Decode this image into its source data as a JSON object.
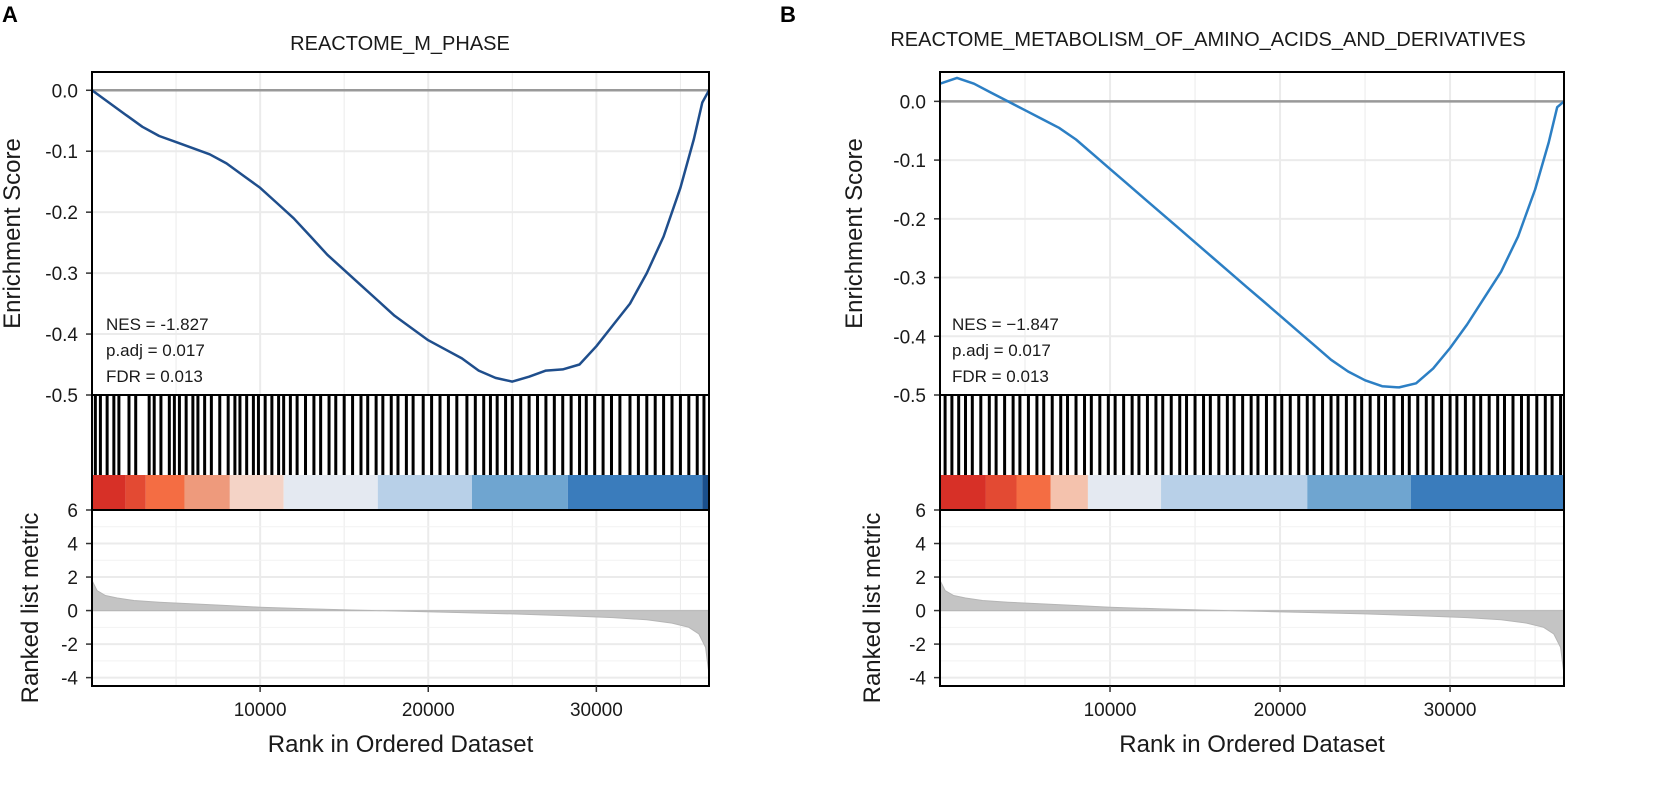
{
  "chart_data": [
    {
      "type": "line",
      "panel_label": "A",
      "title": "REACTOME_M_PHASE",
      "xlabel": "Rank in Ordered Dataset",
      "ylabel_es": "Enrichment Score",
      "ylabel_metric": "Ranked list metric",
      "xlim": [
        0,
        36700
      ],
      "x_ticks": [
        10000,
        20000,
        30000
      ],
      "x_tick_labels": [
        "10000",
        "20000",
        "30000"
      ],
      "es_ylim": [
        -0.5,
        0.03
      ],
      "es_ticks": [
        0.0,
        -0.1,
        -0.2,
        -0.3,
        -0.4,
        -0.5
      ],
      "es_tick_labels": [
        "0.0",
        "-0.1",
        "-0.2",
        "-0.3",
        "-0.4",
        "-0.5"
      ],
      "metric_ylim": [
        -4.5,
        6
      ],
      "metric_ticks": [
        6,
        4,
        2,
        0,
        -2,
        -4
      ],
      "metric_tick_labels": [
        "6",
        "4",
        "2",
        "0",
        "-2",
        "-4"
      ],
      "line_color": "#1f4e8c",
      "stats": {
        "nes": "NES = -1.827",
        "padj": "p.adj = 0.017",
        "fdr": "FDR = 0.013"
      },
      "es_curve": {
        "x": [
          0,
          1000,
          2000,
          3000,
          4000,
          5000,
          6000,
          7000,
          8000,
          9000,
          10000,
          11000,
          12000,
          13000,
          14000,
          15000,
          16000,
          17000,
          18000,
          19000,
          20000,
          21000,
          22000,
          23000,
          24000,
          25000,
          26000,
          27000,
          28000,
          29000,
          30000,
          31000,
          32000,
          33000,
          34000,
          35000,
          35800,
          36300,
          36700
        ],
        "y": [
          0.0,
          -0.02,
          -0.04,
          -0.06,
          -0.075,
          -0.085,
          -0.095,
          -0.105,
          -0.12,
          -0.14,
          -0.16,
          -0.185,
          -0.21,
          -0.24,
          -0.27,
          -0.295,
          -0.32,
          -0.345,
          -0.37,
          -0.39,
          -0.41,
          -0.425,
          -0.44,
          -0.46,
          -0.472,
          -0.478,
          -0.47,
          -0.46,
          -0.458,
          -0.45,
          -0.42,
          -0.385,
          -0.35,
          -0.3,
          -0.24,
          -0.16,
          -0.08,
          -0.02,
          0.0
        ]
      },
      "hit_ranks": [
        200,
        500,
        900,
        1300,
        1600,
        2200,
        2600,
        3400,
        3700,
        4100,
        4600,
        4900,
        5200,
        5600,
        6000,
        6300,
        6700,
        7100,
        7600,
        8100,
        8500,
        8800,
        9200,
        9600,
        9900,
        10300,
        10700,
        11100,
        11400,
        11800,
        12200,
        12700,
        13200,
        13600,
        14100,
        14500,
        15000,
        15500,
        16000,
        16400,
        16900,
        17300,
        17800,
        18200,
        18700,
        19100,
        19700,
        20200,
        20700,
        21200,
        21700,
        22300,
        22800,
        23300,
        23700,
        24100,
        24600,
        25000,
        25500,
        26000,
        26500,
        27000,
        27500,
        28000,
        28500,
        29000,
        29400,
        29900,
        30400,
        30900,
        31400,
        32000,
        32500,
        33000,
        33500,
        34000,
        34500,
        35000,
        35500,
        36000,
        36400
      ],
      "metric_curve": {
        "x": [
          0,
          300,
          800,
          1500,
          2500,
          4000,
          6000,
          8000,
          10000,
          13000,
          16000,
          19000,
          22000,
          25000,
          28000,
          31000,
          33000,
          34500,
          35500,
          36100,
          36500,
          36700
        ],
        "y": [
          1.8,
          1.2,
          0.9,
          0.75,
          0.6,
          0.5,
          0.4,
          0.3,
          0.2,
          0.1,
          0.02,
          -0.05,
          -0.12,
          -0.2,
          -0.3,
          -0.42,
          -0.55,
          -0.75,
          -1.0,
          -1.4,
          -2.2,
          -3.8
        ]
      },
      "color_strip": [
        {
          "start": 0,
          "end": 2000,
          "color": "#d73027"
        },
        {
          "start": 2000,
          "end": 3200,
          "color": "#e34a33"
        },
        {
          "start": 3200,
          "end": 5500,
          "color": "#f46d43"
        },
        {
          "start": 5500,
          "end": 8200,
          "color": "#ee9a7c"
        },
        {
          "start": 8200,
          "end": 11400,
          "color": "#f4d3c6"
        },
        {
          "start": 11400,
          "end": 17000,
          "color": "#e4e9f1"
        },
        {
          "start": 17000,
          "end": 22600,
          "color": "#b8d0e8"
        },
        {
          "start": 22600,
          "end": 28300,
          "color": "#6fa5d0"
        },
        {
          "start": 28300,
          "end": 36300,
          "color": "#3a7cbc"
        },
        {
          "start": 36300,
          "end": 36700,
          "color": "#1a4f8c"
        }
      ]
    },
    {
      "type": "line",
      "panel_label": "B",
      "title": "REACTOME_METABOLISM_OF_AMINO_ACIDS_AND_DERIVATIVES",
      "xlabel": "Rank in Ordered Dataset",
      "ylabel_es": "Enrichment Score",
      "ylabel_metric": "Ranked list metric",
      "xlim": [
        0,
        36700
      ],
      "x_ticks": [
        10000,
        20000,
        30000
      ],
      "x_tick_labels": [
        "10000",
        "20000",
        "30000"
      ],
      "es_ylim": [
        -0.5,
        0.05
      ],
      "es_ticks": [
        0.0,
        -0.1,
        -0.2,
        -0.3,
        -0.4,
        -0.5
      ],
      "es_tick_labels": [
        "0.0",
        "-0.1",
        "-0.2",
        "-0.3",
        "-0.4",
        "-0.5"
      ],
      "metric_ylim": [
        -4.5,
        6
      ],
      "metric_ticks": [
        6,
        4,
        2,
        0,
        -2,
        -4
      ],
      "metric_tick_labels": [
        "6",
        "4",
        "2",
        "0",
        "-2",
        "-4"
      ],
      "line_color": "#2c7fc4",
      "stats": {
        "nes": "NES = −1.847",
        "padj": "p.adj = 0.017",
        "fdr": "FDR = 0.013"
      },
      "es_curve": {
        "x": [
          0,
          1000,
          2000,
          3000,
          4000,
          5000,
          6000,
          7000,
          8000,
          9000,
          10000,
          11000,
          12000,
          13000,
          14000,
          15000,
          16000,
          17000,
          18000,
          19000,
          20000,
          21000,
          22000,
          23000,
          24000,
          25000,
          26000,
          27000,
          28000,
          29000,
          30000,
          31000,
          32000,
          33000,
          34000,
          35000,
          35800,
          36300,
          36700
        ],
        "y": [
          0.03,
          0.04,
          0.03,
          0.015,
          0.0,
          -0.015,
          -0.03,
          -0.045,
          -0.065,
          -0.09,
          -0.115,
          -0.14,
          -0.165,
          -0.19,
          -0.215,
          -0.24,
          -0.265,
          -0.29,
          -0.315,
          -0.34,
          -0.365,
          -0.39,
          -0.415,
          -0.44,
          -0.46,
          -0.475,
          -0.485,
          -0.487,
          -0.48,
          -0.455,
          -0.42,
          -0.38,
          -0.335,
          -0.29,
          -0.23,
          -0.15,
          -0.07,
          -0.01,
          0.0
        ]
      },
      "hit_ranks": [
        300,
        700,
        1100,
        1500,
        1900,
        2400,
        2900,
        3300,
        3800,
        4300,
        4700,
        5200,
        5700,
        6100,
        6600,
        7100,
        7500,
        8000,
        8500,
        8900,
        9400,
        9900,
        10300,
        10800,
        11300,
        11700,
        12200,
        12700,
        13100,
        13600,
        14100,
        14500,
        15000,
        15500,
        15900,
        16400,
        16900,
        17300,
        17800,
        18300,
        18700,
        19200,
        19700,
        20100,
        20600,
        21100,
        21600,
        22000,
        22500,
        23000,
        23400,
        23900,
        24400,
        24800,
        25300,
        25800,
        26200,
        26700,
        27200,
        27600,
        28100,
        28600,
        29000,
        29500,
        30000,
        30400,
        30900,
        31400,
        31800,
        32300,
        32800,
        33200,
        33700,
        34200,
        34600,
        35100,
        35600,
        36000,
        36500
      ],
      "metric_curve": {
        "x": [
          0,
          300,
          800,
          1500,
          2500,
          4000,
          6000,
          8000,
          10000,
          13000,
          16000,
          19000,
          22000,
          25000,
          28000,
          31000,
          33000,
          34500,
          35500,
          36100,
          36500,
          36700
        ],
        "y": [
          1.8,
          1.2,
          0.9,
          0.75,
          0.6,
          0.5,
          0.4,
          0.3,
          0.2,
          0.1,
          0.02,
          -0.05,
          -0.12,
          -0.2,
          -0.3,
          -0.42,
          -0.55,
          -0.75,
          -1.0,
          -1.4,
          -2.2,
          -3.8
        ]
      },
      "color_strip": [
        {
          "start": 0,
          "end": 2700,
          "color": "#d73027"
        },
        {
          "start": 2700,
          "end": 4500,
          "color": "#e34a33"
        },
        {
          "start": 4500,
          "end": 6500,
          "color": "#f46d43"
        },
        {
          "start": 6500,
          "end": 8700,
          "color": "#f4c2ad"
        },
        {
          "start": 8700,
          "end": 13000,
          "color": "#e4e9f1"
        },
        {
          "start": 13000,
          "end": 21600,
          "color": "#b8d0e8"
        },
        {
          "start": 21600,
          "end": 27700,
          "color": "#6fa5d0"
        },
        {
          "start": 27700,
          "end": 36700,
          "color": "#3a7cbc"
        }
      ]
    }
  ]
}
